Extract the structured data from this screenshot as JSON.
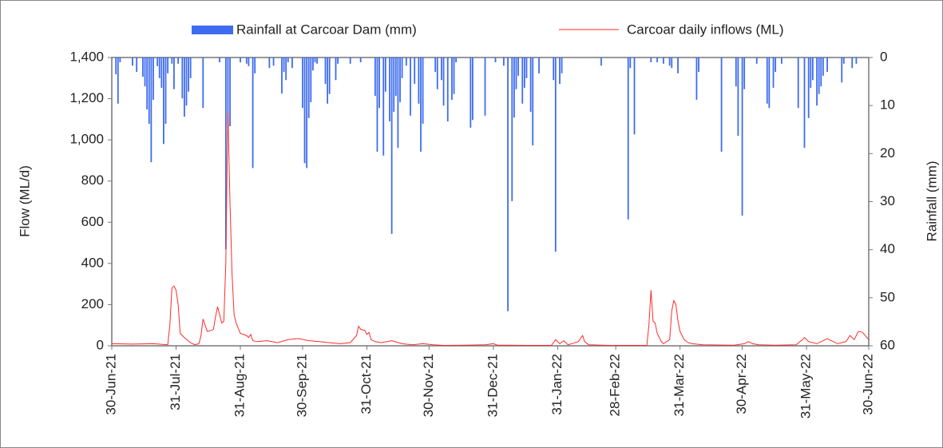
{
  "chart_data": {
    "type": "combo",
    "ylabel": "Flow (ML/d)",
    "y2label": "Rainfall (mm)",
    "xlim": [
      0,
      365
    ],
    "xticks": [
      {
        "value": 0,
        "label": "30-Jun-21"
      },
      {
        "value": 31,
        "label": "31-Jul-21"
      },
      {
        "value": 62,
        "label": "31-Aug-21"
      },
      {
        "value": 92,
        "label": "30-Sep-21"
      },
      {
        "value": 123,
        "label": "31-Oct-21"
      },
      {
        "value": 153,
        "label": "30-Nov-21"
      },
      {
        "value": 184,
        "label": "31-Dec-21"
      },
      {
        "value": 215,
        "label": "31-Jan-22"
      },
      {
        "value": 243,
        "label": "28-Feb-22"
      },
      {
        "value": 274,
        "label": "31-Mar-22"
      },
      {
        "value": 304,
        "label": "30-Apr-22"
      },
      {
        "value": 335,
        "label": "31-May-22"
      },
      {
        "value": 365,
        "label": "30-Jun-22"
      }
    ],
    "ylim": [
      0,
      1400
    ],
    "yticks": [
      0,
      200,
      400,
      600,
      800,
      {
        "value": 1000,
        "label": "1,000"
      },
      {
        "value": 1200,
        "label": "1,200"
      },
      {
        "value": 1400,
        "label": "1,400"
      }
    ],
    "y2lim": [
      60,
      0
    ],
    "y2ticks": [
      0,
      10,
      20,
      30,
      40,
      50,
      60
    ],
    "series": [
      {
        "name": "Rainfall at Carcoar Dam (mm)",
        "type": "bar",
        "axis": "y2",
        "color": "#3e6cf0",
        "x": [
          2,
          3,
          4,
          10,
          12,
          15,
          16,
          17,
          18,
          19,
          20,
          22,
          23,
          24,
          25,
          26,
          27,
          29,
          30,
          32,
          34,
          35,
          36,
          37,
          38,
          44,
          52,
          55,
          56,
          57,
          62,
          65,
          66,
          68,
          69,
          76,
          78,
          82,
          83,
          84,
          85,
          87,
          92,
          93,
          94,
          95,
          96,
          97,
          98,
          99,
          103,
          104,
          105,
          108,
          109,
          115,
          120,
          127,
          128,
          129,
          131,
          132,
          134,
          135,
          136,
          137,
          138,
          139,
          140,
          142,
          144,
          146,
          148,
          149,
          150,
          156,
          157,
          159,
          160,
          162,
          164,
          165,
          166,
          173,
          174,
          180,
          185,
          189,
          191,
          193,
          194,
          195,
          196,
          198,
          199,
          200,
          202,
          203,
          206,
          213,
          214,
          216,
          217,
          236,
          249,
          250,
          252,
          260,
          263,
          266,
          269,
          270,
          273,
          282,
          283,
          294,
          301,
          302,
          304,
          305,
          311,
          316,
          317,
          319,
          320,
          323,
          331,
          334,
          336,
          337,
          338,
          340,
          341,
          342,
          343,
          345,
          352,
          353,
          357,
          359
        ],
        "values": [
          3.5,
          9.6,
          1,
          1.7,
          3,
          4,
          6,
          10.8,
          13.8,
          21.8,
          8.8,
          1.8,
          4.3,
          6.3,
          18,
          13.8,
          3.3,
          1.3,
          6.6,
          1.3,
          8.5,
          12.3,
          10,
          7.1,
          4.3,
          10.5,
          1,
          39.9,
          14.6,
          14.3,
          1,
          1.3,
          1.8,
          23,
          3.3,
          2.2,
          1.7,
          7.5,
          3,
          4.7,
          1,
          2.2,
          10.5,
          22,
          23,
          12.6,
          9.3,
          2.7,
          1,
          1.3,
          5.5,
          9.6,
          7.6,
          4.7,
          1.3,
          1.3,
          1,
          8,
          19.6,
          10.5,
          20.4,
          7.1,
          13.3,
          36.7,
          11.3,
          8,
          18.8,
          9.3,
          4.3,
          1.7,
          12.1,
          5.5,
          9.6,
          19.6,
          13.8,
          3,
          6.6,
          4.7,
          10,
          13.3,
          8.8,
          7.6,
          1,
          14.6,
          13,
          12.1,
          1,
          1.7,
          52.8,
          29.9,
          12.5,
          6.6,
          3.8,
          9.6,
          6.3,
          4.3,
          11.3,
          18.3,
          3.3,
          4.7,
          40.4,
          5.5,
          3.3,
          1.7,
          33.7,
          2.2,
          16,
          1,
          1,
          1.3,
          1.7,
          2.2,
          3.3,
          8.8,
          3,
          19.6,
          6,
          16.3,
          32.9,
          6.6,
          1.3,
          9.6,
          10.5,
          6.3,
          3,
          1.3,
          10.5,
          18.8,
          12.6,
          6.3,
          4.7,
          10,
          7.6,
          6,
          3.8,
          3,
          5.2,
          1.3,
          2.2,
          1.3
        ]
      },
      {
        "name": "Carcoar daily inflows (ML)",
        "type": "line",
        "color": "#ff2a2a",
        "x": [
          0,
          10,
          20,
          27,
          28,
          29,
          30,
          31,
          32,
          33,
          35,
          38,
          40,
          42,
          43,
          44,
          45,
          46,
          48,
          49,
          50,
          51,
          52,
          53,
          54,
          55,
          56,
          57,
          58,
          59,
          60,
          62,
          65,
          66,
          67,
          68,
          70,
          75,
          80,
          85,
          90,
          95,
          100,
          105,
          110,
          115,
          118,
          119,
          120,
          122,
          123,
          124,
          125,
          127,
          130,
          135,
          140,
          145,
          150,
          155,
          160,
          170,
          180,
          184,
          186,
          200,
          212,
          214,
          216,
          218,
          220,
          225,
          227,
          228,
          230,
          240,
          258,
          259,
          260,
          261,
          262,
          263,
          265,
          266,
          269,
          270,
          271,
          272,
          273,
          274,
          276,
          278,
          280,
          285,
          300,
          305,
          307,
          309,
          312,
          320,
          330,
          333,
          334,
          336,
          340,
          345,
          350,
          354,
          356,
          358,
          360,
          362,
          365
        ],
        "values": [
          10,
          8,
          10,
          5,
          100,
          280,
          290,
          270,
          200,
          60,
          40,
          15,
          5,
          10,
          50,
          130,
          100,
          70,
          75,
          80,
          140,
          190,
          150,
          110,
          120,
          400,
          1140,
          700,
          350,
          150,
          110,
          60,
          50,
          40,
          55,
          25,
          20,
          25,
          15,
          30,
          35,
          25,
          20,
          15,
          10,
          15,
          50,
          95,
          80,
          75,
          55,
          65,
          30,
          20,
          15,
          25,
          10,
          5,
          10,
          5,
          2,
          3,
          5,
          10,
          3,
          2,
          2,
          30,
          10,
          25,
          5,
          20,
          50,
          20,
          5,
          2,
          2,
          100,
          270,
          120,
          110,
          60,
          20,
          10,
          30,
          170,
          220,
          200,
          120,
          70,
          30,
          15,
          10,
          5,
          3,
          10,
          20,
          10,
          5,
          3,
          5,
          30,
          40,
          20,
          10,
          35,
          10,
          20,
          50,
          30,
          70,
          65,
          30
        ]
      }
    ]
  }
}
